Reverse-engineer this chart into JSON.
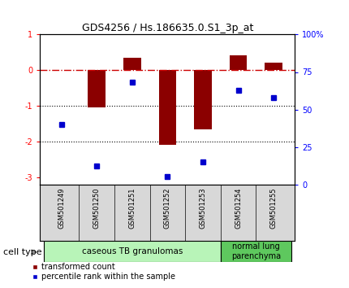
{
  "title": "GDS4256 / Hs.186635.0.S1_3p_at",
  "samples": [
    "GSM501249",
    "GSM501250",
    "GSM501251",
    "GSM501252",
    "GSM501253",
    "GSM501254",
    "GSM501255"
  ],
  "transformed_counts": [
    0.0,
    -1.05,
    0.35,
    -2.1,
    -1.65,
    0.42,
    0.22
  ],
  "percentile_ranks": [
    40,
    12,
    68,
    5,
    15,
    63,
    58
  ],
  "ylim_left": [
    -3.2,
    1.0
  ],
  "ylim_right": [
    0,
    100
  ],
  "bar_color": "#8B0000",
  "marker_color": "#0000CD",
  "dash_line_color": "#CC0000",
  "background_color": "#FFFFFF",
  "ct_color1": "#b8f4b8",
  "ct_color2": "#5ec85e",
  "ct_label1": "caseous TB granulomas",
  "ct_label2": "normal lung\nparenchyma",
  "legend_red_label": "transformed count",
  "legend_blue_label": "percentile rank within the sample",
  "cell_type_label": "cell type"
}
